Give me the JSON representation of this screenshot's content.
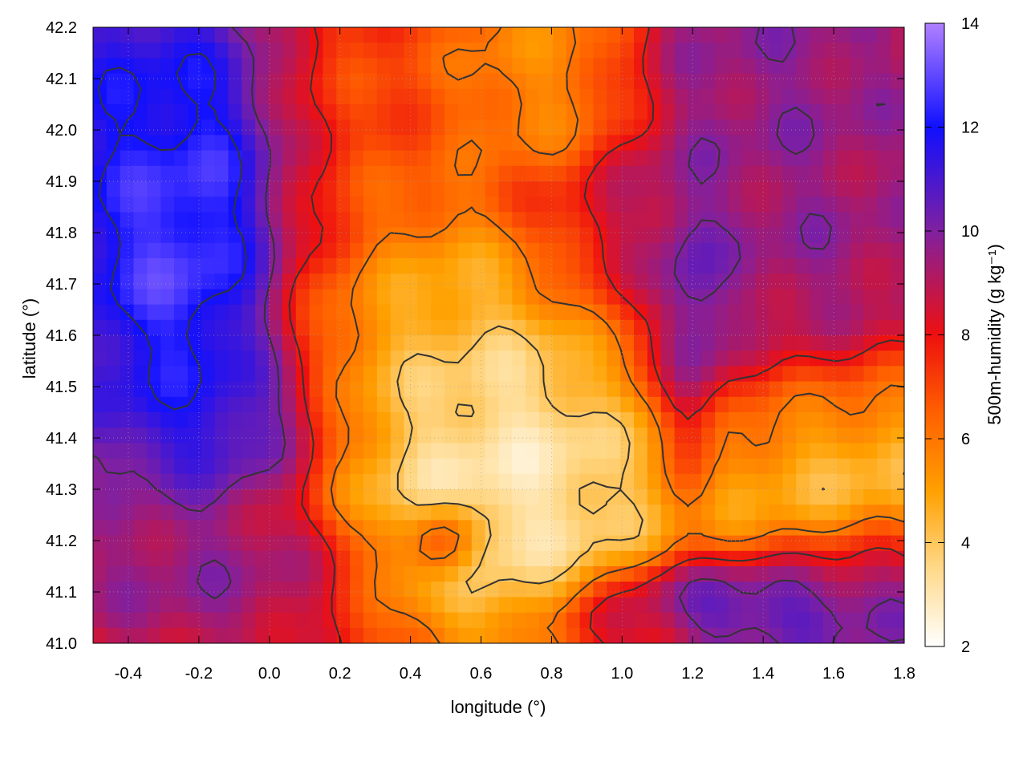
{
  "chart_data": {
    "type": "heatmap",
    "title": "",
    "xlabel": "longitude (°)",
    "ylabel": "latitude (°)",
    "colorbar_label": "500m-humidity (g kg⁻¹)",
    "xlim": [
      -0.5,
      1.8
    ],
    "ylim": [
      41.0,
      42.2
    ],
    "clim": [
      2,
      14
    ],
    "x_ticks": [
      "-0.4",
      "-0.2",
      "0.0",
      "0.2",
      "0.4",
      "0.6",
      "0.8",
      "1.0",
      "1.2",
      "1.4",
      "1.6",
      "1.8"
    ],
    "y_ticks": [
      "41.0",
      "41.1",
      "41.2",
      "41.3",
      "41.4",
      "41.5",
      "41.6",
      "41.7",
      "41.8",
      "41.9",
      "42.0",
      "42.1",
      "42.2"
    ],
    "colorbar_ticks": [
      "2",
      "4",
      "6",
      "8",
      "10",
      "12",
      "14"
    ],
    "grid": true,
    "contours": true,
    "colormap": [
      {
        "value": 2,
        "color": "#ffffff"
      },
      {
        "value": 3.5,
        "color": "#ffd98a"
      },
      {
        "value": 5,
        "color": "#ffa000"
      },
      {
        "value": 6.5,
        "color": "#ff6000"
      },
      {
        "value": 8,
        "color": "#ee1010"
      },
      {
        "value": 10,
        "color": "#8020a0"
      },
      {
        "value": 12,
        "color": "#1010ff"
      },
      {
        "value": 14,
        "color": "#b080ff"
      }
    ],
    "field_features": [
      {
        "lon": -0.2,
        "lat": 41.8,
        "humidity": 14,
        "spread_lon": 0.22,
        "spread_lat": 0.22
      },
      {
        "lon": -0.38,
        "lat": 42.05,
        "humidity": 12,
        "spread_lon": 0.12,
        "spread_lat": 0.15
      },
      {
        "lon": -0.15,
        "lat": 41.45,
        "humidity": 12,
        "spread_lon": 0.2,
        "spread_lat": 0.08
      },
      {
        "lon": 0.7,
        "lat": 41.35,
        "humidity": 2,
        "spread_lon": 0.28,
        "spread_lat": 0.18
      },
      {
        "lon": 1.6,
        "lat": 41.35,
        "humidity": 2.5,
        "spread_lon": 0.25,
        "spread_lat": 0.12
      },
      {
        "lon": 0.35,
        "lat": 41.6,
        "humidity": 4,
        "spread_lon": 0.2,
        "spread_lat": 0.15
      },
      {
        "lon": 0.8,
        "lat": 42.1,
        "humidity": 5,
        "spread_lon": 0.15,
        "spread_lat": 0.1
      },
      {
        "lon": 1.45,
        "lat": 41.8,
        "humidity": 10,
        "spread_lon": 0.3,
        "spread_lat": 0.3
      },
      {
        "lon": 1.2,
        "lat": 41.6,
        "humidity": 12,
        "spread_lon": 0.05,
        "spread_lat": 0.15
      },
      {
        "lon": 1.4,
        "lat": 41.08,
        "humidity": 12,
        "spread_lon": 0.25,
        "spread_lat": 0.05
      },
      {
        "lon": 1.7,
        "lat": 41.1,
        "humidity": 10,
        "spread_lon": 0.15,
        "spread_lat": 0.08
      },
      {
        "lon": -0.2,
        "lat": 41.15,
        "humidity": 10,
        "spread_lon": 0.25,
        "spread_lat": 0.1
      },
      {
        "lon": 0.5,
        "lat": 41.2,
        "humidity": 9,
        "spread_lon": 0.05,
        "spread_lat": 0.04
      },
      {
        "lon": 1.0,
        "lat": 41.03,
        "humidity": 9,
        "spread_lon": 0.1,
        "spread_lat": 0.03
      },
      {
        "lon": 1.45,
        "lat": 42.12,
        "humidity": 10,
        "spread_lon": 0.2,
        "spread_lat": 0.08
      },
      {
        "lon": 0.2,
        "lat": 41.9,
        "humidity": 6.5,
        "spread_lon": 0.15,
        "spread_lat": 0.2
      }
    ]
  }
}
